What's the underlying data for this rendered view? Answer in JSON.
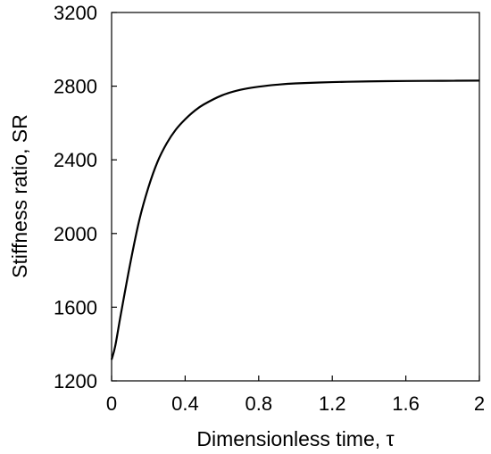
{
  "chart_data": {
    "type": "line",
    "title": "",
    "xlabel": "Dimensionless time, τ",
    "ylabel": "Stiffness ratio, SR",
    "xlim": [
      0,
      2
    ],
    "ylim": [
      1200,
      3200
    ],
    "xticks": [
      0,
      0.4,
      0.8,
      1.2,
      1.6,
      2
    ],
    "xtick_labels": [
      "0",
      "0.4",
      "0.8",
      "1.2",
      "1.6",
      "2"
    ],
    "yticks": [
      1200,
      1600,
      2000,
      2400,
      2800,
      3200
    ],
    "ytick_labels": [
      "1200",
      "1600",
      "2000",
      "2400",
      "2800",
      "3200"
    ],
    "grid": false,
    "legend": "none",
    "series": [
      {
        "color": "#000000",
        "x": [
          0,
          0.02,
          0.05,
          0.1,
          0.15,
          0.2,
          0.25,
          0.3,
          0.35,
          0.4,
          0.45,
          0.5,
          0.6,
          0.7,
          0.8,
          0.9,
          1.0,
          1.2,
          1.4,
          1.6,
          1.8,
          2.0
        ],
        "y": [
          1315,
          1390,
          1560,
          1830,
          2070,
          2250,
          2390,
          2490,
          2565,
          2620,
          2665,
          2700,
          2750,
          2780,
          2797,
          2808,
          2815,
          2822,
          2826,
          2828,
          2829,
          2830
        ]
      }
    ]
  }
}
